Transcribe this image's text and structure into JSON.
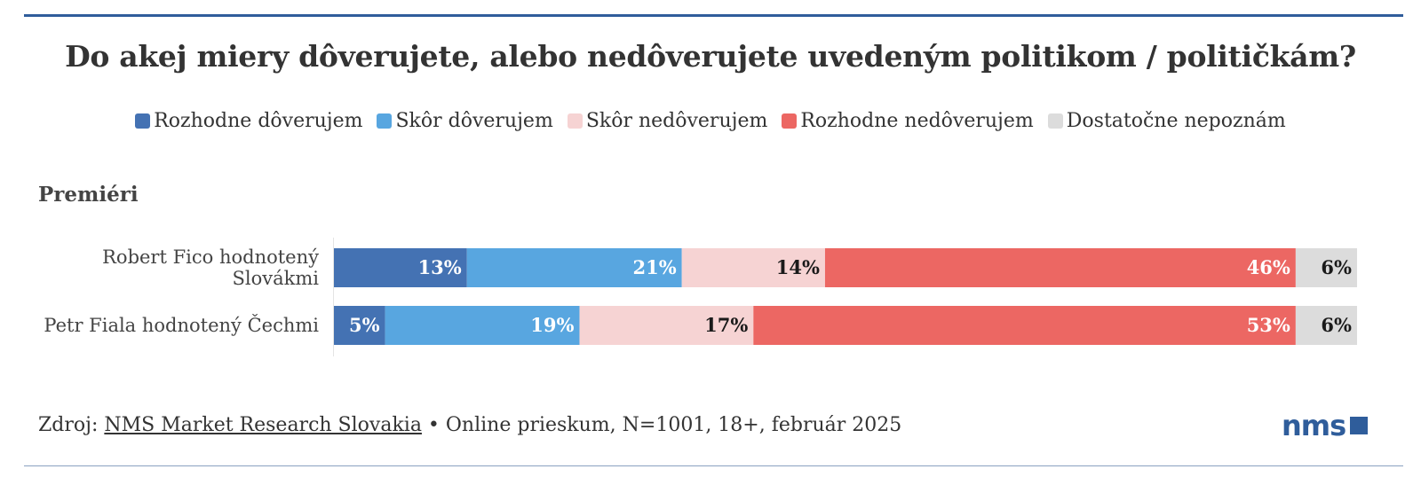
{
  "chart_data": {
    "type": "bar",
    "orientation": "horizontal",
    "stacked": true,
    "title": "Do akej miery dôverujete, alebo nedôverujete uvedeným politikom / političkám?",
    "section": "Premiéri",
    "categories": [
      [
        "Robert Fico hodnotený",
        "Slovákmi"
      ],
      [
        "Petr Fiala hodnotený Čechmi"
      ]
    ],
    "series": [
      {
        "name": "Rozhodne dôverujem",
        "color": "#4472b3",
        "label_color": "#ffffff",
        "values": [
          13,
          5
        ]
      },
      {
        "name": "Skôr dôverujem",
        "color": "#58a6e0",
        "label_color": "#ffffff",
        "values": [
          21,
          19
        ]
      },
      {
        "name": "Skôr nedôverujem",
        "color": "#f6d3d3",
        "label_color": "#1a1a1a",
        "values": [
          14,
          17
        ]
      },
      {
        "name": "Rozhodne nedôverujem",
        "color": "#ec6763",
        "label_color": "#ffffff",
        "values": [
          46,
          53
        ]
      },
      {
        "name": "Dostatočne nepoznám",
        "color": "#dcdcdc",
        "label_color": "#1a1a1a",
        "values": [
          6,
          6
        ]
      }
    ],
    "value_suffix": "%",
    "legend_position": "top"
  },
  "footer": {
    "prefix": "Zdroj: ",
    "source_link": "NMS Market Research Slovakia",
    "details": " • Online prieskum, N=1001, 18+, február 2025"
  },
  "logo": {
    "text": "nms"
  }
}
